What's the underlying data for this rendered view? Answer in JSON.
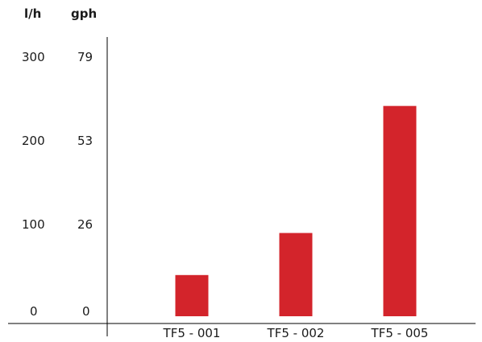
{
  "chart_data": {
    "type": "bar",
    "title": "",
    "xlabel": "",
    "ylabel": "",
    "units": {
      "left": "l/h",
      "right": "gph"
    },
    "categories": [
      "TF5 - 001",
      "TF5 - 002",
      "TF5 - 005"
    ],
    "values": [
      48,
      97,
      245
    ],
    "ylim": [
      0,
      300
    ],
    "yticks_lh": [
      "300",
      "200",
      "100",
      "0"
    ],
    "yticks_gph": [
      "79",
      "53",
      "26",
      "0"
    ],
    "grid": false,
    "bar_color": "#d3242b"
  }
}
